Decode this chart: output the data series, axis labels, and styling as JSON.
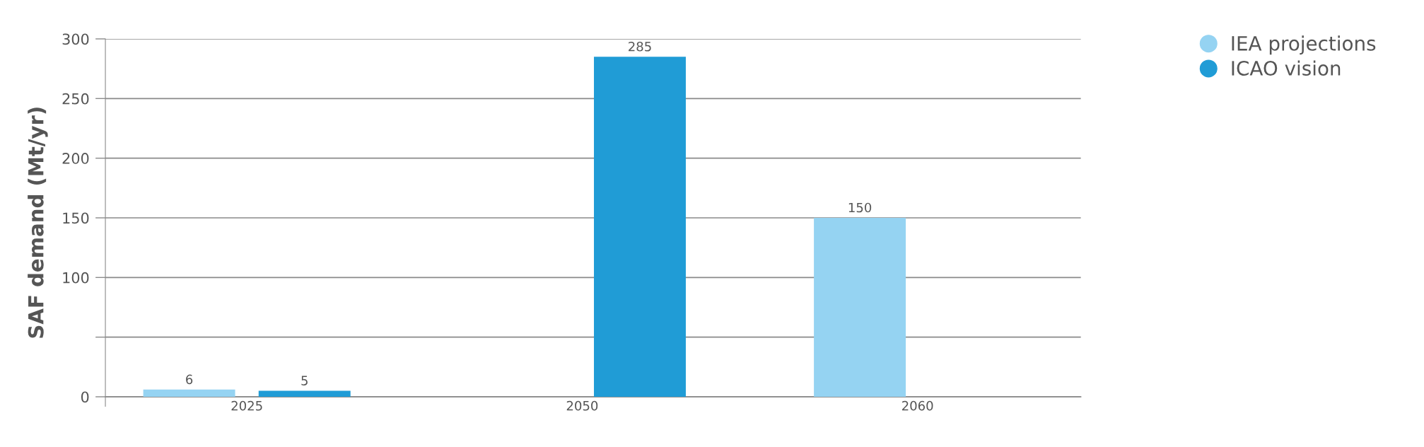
{
  "chart_data": {
    "type": "bar",
    "ylabel": "SAF demand (Mt/yr)",
    "categories": [
      "2025",
      "2050",
      "2060"
    ],
    "series": [
      {
        "name": "IEA projections",
        "color": "#95d3f2",
        "values": [
          6,
          null,
          150
        ]
      },
      {
        "name": "ICAO vision",
        "color": "#209cd6",
        "values": [
          5,
          285,
          null
        ]
      }
    ],
    "ylim": [
      -8,
      300
    ],
    "yticks": [
      0,
      {
        "value": 50,
        "label": null
      },
      100,
      150,
      200,
      250,
      300
    ],
    "grid": "y",
    "legend": "top right",
    "data_labels": true
  }
}
